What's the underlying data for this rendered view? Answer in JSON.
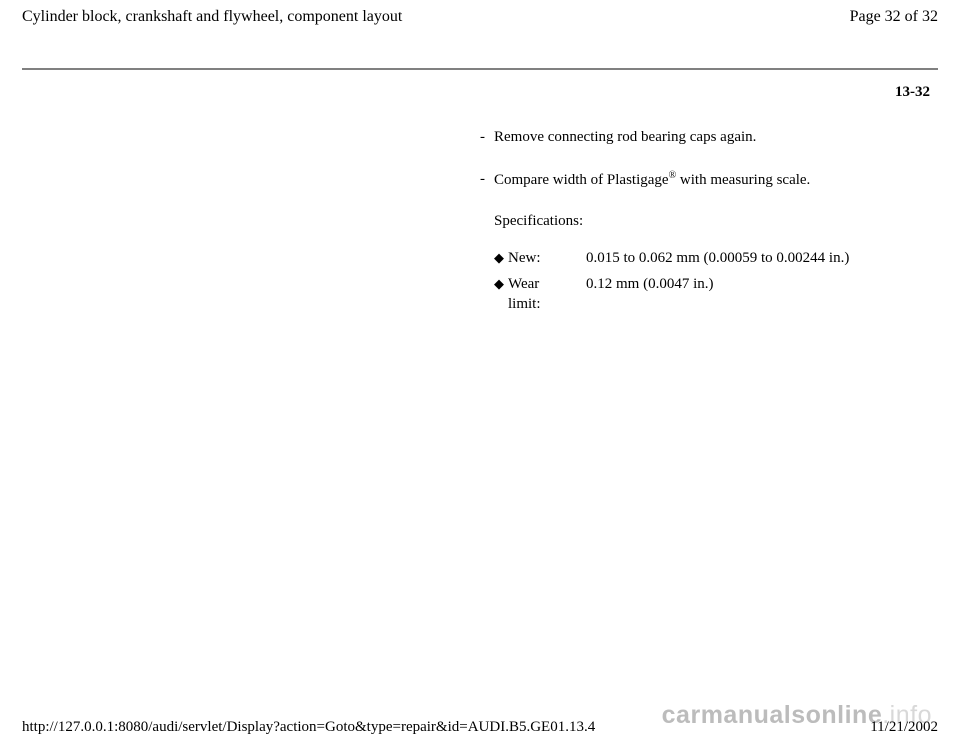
{
  "header": {
    "title": "Cylinder block, crankshaft and flywheel, component layout",
    "page_indicator": "Page 32 of 32"
  },
  "page_number": "13-32",
  "steps": [
    {
      "marker": "-",
      "text": "Remove connecting rod bearing caps again."
    },
    {
      "marker": "-",
      "text_pre": "Compare width of Plastigage",
      "reg": "®",
      "text_post": " with measuring scale."
    }
  ],
  "specifications": {
    "heading": "Specifications:",
    "rows": [
      {
        "bullet": "◆",
        "label": "New:",
        "value": "0.015 to 0.062 mm (0.00059 to 0.00244 in.)"
      },
      {
        "bullet": "◆",
        "label": "Wear limit:",
        "value": "0.12 mm (0.0047 in.)"
      }
    ]
  },
  "footer": {
    "url": "http://127.0.0.1:8080/audi/servlet/Display?action=Goto&type=repair&id=AUDI.B5.GE01.13.4",
    "date": "11/21/2002"
  },
  "watermark": {
    "main": "carmanualsonline",
    "suffix": ".info"
  }
}
